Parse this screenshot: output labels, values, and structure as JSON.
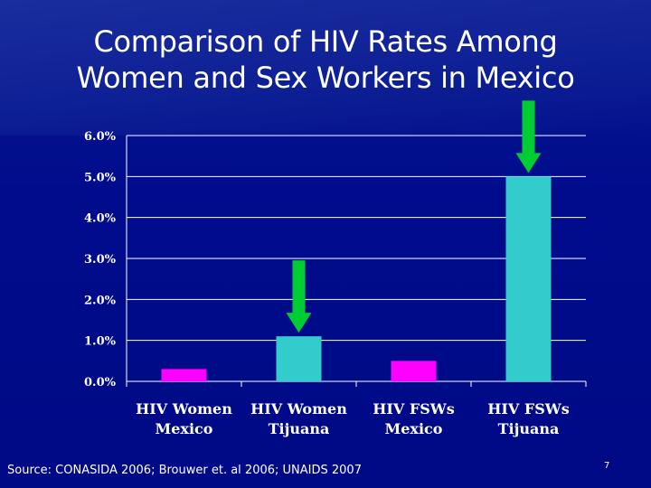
{
  "slide": {
    "title_lines": [
      "Comparison of HIV Rates Among",
      "Women and Sex Workers in Mexico"
    ],
    "source": "Source: CONASIDA 2006; Brouwer et. al 2006; UNAIDS 2007",
    "slide_number": "7"
  },
  "colors": {
    "background": "#000c8c",
    "bar_magenta": "#ff00ff",
    "bar_teal": "#33cccc",
    "arrow_green": "#00cc33",
    "text": "#ffffff"
  },
  "chart_data": {
    "type": "bar",
    "title": "",
    "xlabel": "",
    "ylabel": "",
    "ylim": [
      0,
      6
    ],
    "y_ticks": [
      0,
      1,
      2,
      3,
      4,
      5,
      6
    ],
    "y_tick_labels": [
      "0.0%",
      "1.0%",
      "2.0%",
      "3.0%",
      "4.0%",
      "5.0%",
      "6.0%"
    ],
    "grid": true,
    "categories": [
      [
        "HIV Women",
        "Mexico"
      ],
      [
        "HIV Women",
        "Tijuana"
      ],
      [
        "HIV FSWs",
        "Mexico"
      ],
      [
        "HIV FSWs",
        "Tijuana"
      ]
    ],
    "values": [
      0.3,
      1.1,
      0.5,
      5.0
    ],
    "bar_colors": [
      "#ff00ff",
      "#33cccc",
      "#ff00ff",
      "#33cccc"
    ],
    "highlighted_bars": [
      1,
      3
    ]
  }
}
